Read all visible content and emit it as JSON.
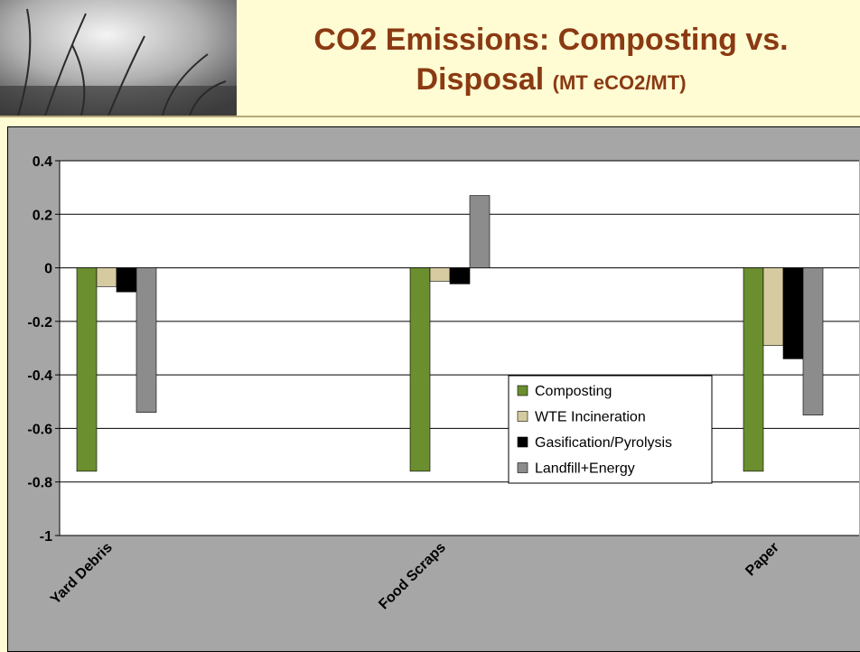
{
  "chart_data": {
    "type": "bar",
    "title": "CO2 Emissions: Composting vs. Disposal",
    "subtitle": "(MT eCO2/MT)",
    "categories": [
      "Yard Debris",
      "Food Scraps",
      "Paper"
    ],
    "series": [
      {
        "name": "Composting",
        "color": "#6b8e2f",
        "values": [
          -0.76,
          -0.76,
          -0.76
        ]
      },
      {
        "name": "WTE Incineration",
        "color": "#d6cba0",
        "values": [
          -0.07,
          -0.05,
          -0.29
        ]
      },
      {
        "name": "Gasification/Pyrolysis",
        "color": "#000000",
        "values": [
          -0.09,
          -0.06,
          -0.34
        ]
      },
      {
        "name": "Landfill+Energy",
        "color": "#8c8c8c",
        "values": [
          -0.54,
          0.27,
          -0.55
        ]
      }
    ],
    "ylim": [
      -1,
      0.4
    ],
    "yticks": [
      -1,
      -0.8,
      -0.6,
      -0.4,
      -0.2,
      0,
      0.2,
      0.4
    ],
    "grid": true,
    "legend": "center"
  }
}
